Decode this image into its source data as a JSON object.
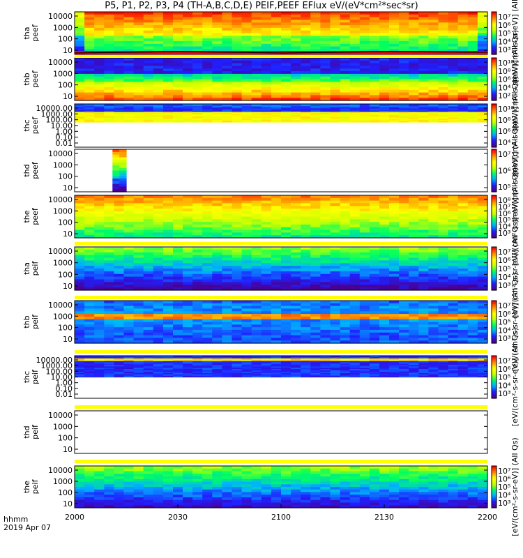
{
  "title": "P5, P1, P2, P3, P4 (TH-A,B,C,D,E) PEIF,PEEF EFlux eV/(eV*cm²*sec*sr)",
  "footer": {
    "time_label": "hhmm",
    "date_label": "2019 Apr 07"
  },
  "colors": {
    "background": "#ffffff",
    "ephemeris_bar": "#ffff00",
    "trace_line": "#000000",
    "colorscale": [
      "#4a0090",
      "#2020ff",
      "#00b0ff",
      "#00ff60",
      "#c8ff00",
      "#ffff00",
      "#ff8c00",
      "#ff0000"
    ]
  },
  "chart_data": {
    "type": "heatmap",
    "x_tick_labels": [
      "2000",
      "2030",
      "2100",
      "2130",
      "2200"
    ],
    "x_tick_values": [
      0,
      30,
      60,
      90,
      120
    ],
    "x_unit": "minutes after 20:00",
    "panels": [
      {
        "id": "tha-peef",
        "probe": "tha",
        "species": "peef",
        "ylabel": [
          "tha",
          "peef"
        ],
        "y_tick_labels": [
          "10000",
          "1000",
          "100",
          "10"
        ],
        "cbar_ticks": [
          "10⁷",
          "10⁶",
          "10⁵",
          "10⁴",
          "10³"
        ],
        "cbar_label": "[eV/(cm²-s-sr-eV)] (All Qs)",
        "coverage": [
          0,
          120
        ]
      },
      {
        "id": "thb-peef",
        "probe": "thb",
        "species": "peef",
        "ylabel": [
          "thb",
          "peef"
        ],
        "y_tick_labels": [
          "10000",
          "1000",
          "100",
          "10"
        ],
        "cbar_ticks": [
          "10¹⁰",
          "10⁸",
          "10⁶",
          "10⁴",
          "10²"
        ],
        "cbar_label": "[eV/(cm²-s-sr-eV)] (All Qs)",
        "coverage": [
          0,
          120
        ]
      },
      {
        "id": "thc-peef",
        "probe": "thc",
        "species": "peef",
        "ylabel": [
          "thc",
          "peef"
        ],
        "y_tick_labels": [
          "10000.00",
          "1000.00",
          "100.00",
          "10.00",
          "1.00",
          "0.10",
          "0.01"
        ],
        "cbar_ticks": [
          "10¹⁰",
          "10⁸",
          "10⁶",
          "10⁴"
        ],
        "cbar_label": "[eV/(cm²-s-sr-eV)] (All Qs)",
        "coverage": [
          0,
          120
        ]
      },
      {
        "id": "thd-peef",
        "probe": "thd",
        "species": "peef",
        "ylabel": [
          "thd",
          "peef"
        ],
        "y_tick_labels": [
          "10000",
          "1000",
          "100",
          "10"
        ],
        "cbar_ticks": [
          "10⁷",
          "10⁶",
          "10⁵"
        ],
        "cbar_label": "[eV/(cm²-s-sr-eV)] (All Qs)",
        "coverage": [
          11,
          15
        ]
      },
      {
        "id": "the-peef",
        "probe": "the",
        "species": "peef",
        "ylabel": [
          "the",
          "peef"
        ],
        "y_tick_labels": [
          "10000",
          "1000",
          "100",
          "10"
        ],
        "cbar_ticks": [
          "10⁸",
          "10⁷",
          "10⁶",
          "10⁵",
          "10⁴",
          "10³"
        ],
        "cbar_label": "[eV/(cm²-s-sr-eV)] (All Qs)",
        "coverage": [
          0,
          120
        ]
      },
      {
        "id": "tha-peif",
        "probe": "tha",
        "species": "peif",
        "ylabel": [
          "tha",
          "peif"
        ],
        "y_tick_labels": [
          "10000",
          "1000",
          "100",
          "10"
        ],
        "cbar_ticks": [
          "10⁷",
          "10⁶",
          "10⁵",
          "10⁴",
          "10³"
        ],
        "cbar_label": "[eV/(cm²-s-sr-eV)] (All Qs)",
        "coverage": [
          0,
          120
        ]
      },
      {
        "id": "thb-peif",
        "probe": "thb",
        "species": "peif",
        "ylabel": [
          "thb",
          "peif"
        ],
        "y_tick_labels": [
          "10000",
          "1000",
          "100",
          "10"
        ],
        "cbar_ticks": [
          "10⁷",
          "10⁶",
          "10⁵",
          "10⁴",
          "10³"
        ],
        "cbar_label": "[eV/(cm²-s-sr-eV)] (All Qs)",
        "coverage": [
          0,
          120
        ]
      },
      {
        "id": "thc-peif",
        "probe": "thc",
        "species": "peif",
        "ylabel": [
          "thc",
          "peif"
        ],
        "y_tick_labels": [
          "10000.00",
          "1000.00",
          "100.00",
          "10.00",
          "1.00",
          "0.10",
          "0.01"
        ],
        "cbar_ticks": [
          "10⁷",
          "10⁶",
          "10⁵",
          "10⁴",
          "10³"
        ],
        "cbar_label": "[eV/(cm²-s-sr-eV)] (All Qs)",
        "coverage": [
          0,
          120
        ]
      },
      {
        "id": "thd-peif",
        "probe": "thd",
        "species": "peif",
        "ylabel": [
          "thd",
          "peif"
        ],
        "y_tick_labels": [
          "10000",
          "1000",
          "100",
          "10"
        ],
        "cbar_ticks": [],
        "cbar_label": "",
        "coverage": []
      },
      {
        "id": "the-peif",
        "probe": "the",
        "species": "peif",
        "ylabel": [
          "the",
          "peif"
        ],
        "y_tick_labels": [
          "10000",
          "1000",
          "100",
          "10"
        ],
        "cbar_ticks": [
          "10⁷",
          "10⁶",
          "10⁵",
          "10⁴",
          "10³"
        ],
        "cbar_label": "[eV/(cm²-s-sr-eV)] (All Qs)",
        "coverage": [
          0,
          120
        ]
      }
    ]
  }
}
